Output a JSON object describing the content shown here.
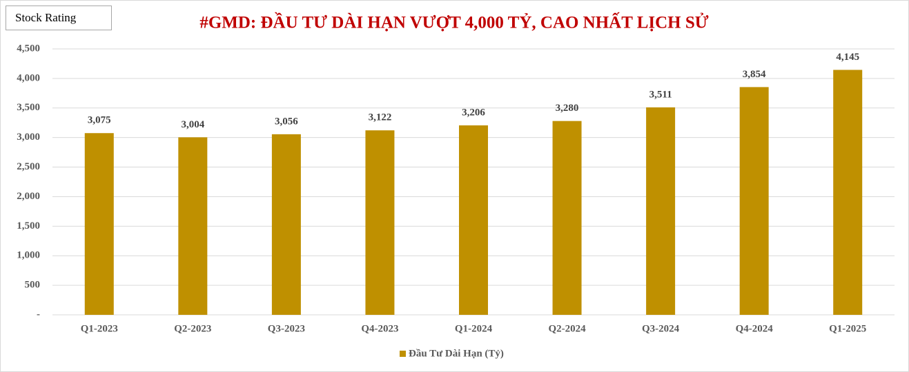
{
  "chart_data": {
    "type": "bar",
    "title": "#GMD: ĐẦU TƯ DÀI HẠN VƯỢT 4,000 TỶ, CAO NHẤT LỊCH SỬ",
    "annotation": "Stock Rating",
    "categories": [
      "Q1-2023",
      "Q2-2023",
      "Q3-2023",
      "Q4-2023",
      "Q1-2024",
      "Q2-2024",
      "Q3-2024",
      "Q4-2024",
      "Q1-2025"
    ],
    "series": [
      {
        "name": "Đầu Tư Dài Hạn (Tỷ)",
        "color": "#bf9000",
        "values": [
          3075,
          3004,
          3056,
          3122,
          3206,
          3280,
          3511,
          3854,
          4145
        ],
        "value_labels": [
          "3,075",
          "3,004",
          "3,056",
          "3,122",
          "3,206",
          "3,280",
          "3,511",
          "3,854",
          "4,145"
        ]
      }
    ],
    "ylim": [
      0,
      4500
    ],
    "yticks": [
      {
        "value": 0,
        "label": "-"
      },
      500,
      {
        "value": 1000,
        "label": "1,000"
      },
      {
        "value": 1500,
        "label": "1,500"
      },
      {
        "value": 2000,
        "label": "2,000"
      },
      {
        "value": 2500,
        "label": "2,500"
      },
      {
        "value": 3000,
        "label": "3,000"
      },
      {
        "value": 3500,
        "label": "3,500"
      },
      {
        "value": 4000,
        "label": "4,000"
      },
      {
        "value": 4500,
        "label": "4,500"
      }
    ],
    "grid": true,
    "legend": "bottom"
  }
}
